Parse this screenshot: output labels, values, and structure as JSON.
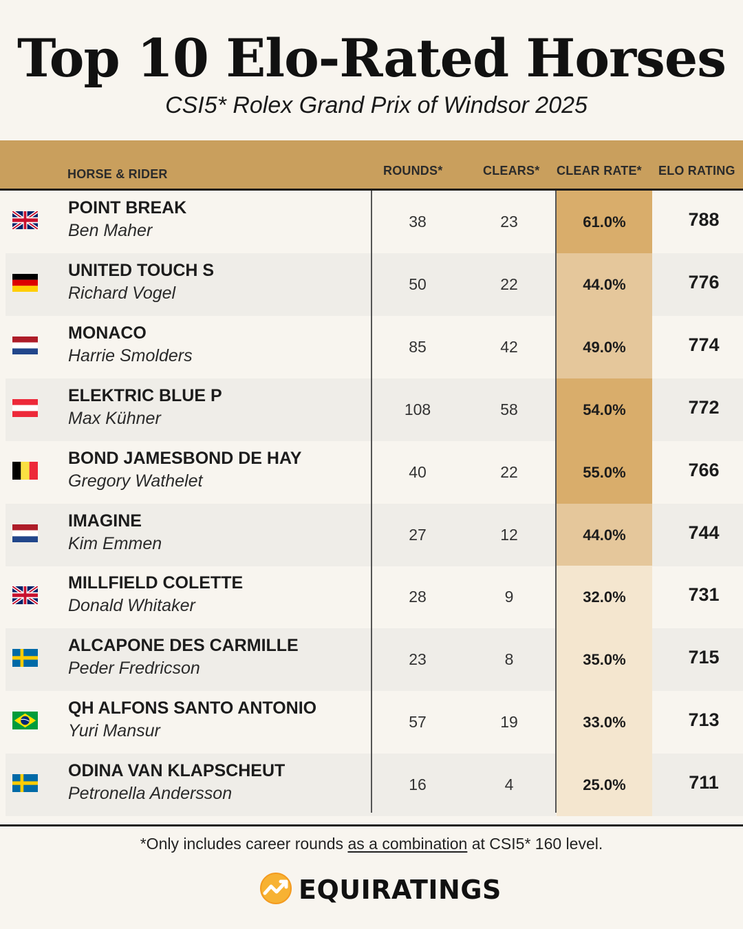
{
  "title": "Top 10 Elo-Rated Horses",
  "subtitle": "CSI5* Rolex Grand Prix of Windsor 2025",
  "header": {
    "horse_rider": "HORSE & RIDER",
    "rounds": "ROUNDS*",
    "clears": "CLEARS*",
    "clear_rate": "CLEAR RATE*",
    "elo_rating": "ELO RATING"
  },
  "colors": {
    "header_bg": "#c99f5d",
    "rate_high": "#d9ad6b",
    "rate_mid": "#e5c79b",
    "rate_low": "#f4e6cf"
  },
  "chart_data": {
    "type": "table",
    "columns": [
      "HORSE & RIDER",
      "ROUNDS*",
      "CLEARS*",
      "CLEAR RATE*",
      "ELO RATING"
    ],
    "rows": [
      {
        "flag": "great-britain",
        "horse": "POINT BREAK",
        "rider": "Ben Maher",
        "rounds": "38",
        "clears": "23",
        "clear_rate": "61.0%",
        "clear_rate_value": 61.0,
        "elo": "788"
      },
      {
        "flag": "germany",
        "horse": "UNITED TOUCH S",
        "rider": "Richard Vogel",
        "rounds": "50",
        "clears": "22",
        "clear_rate": "44.0%",
        "clear_rate_value": 44.0,
        "elo": "776"
      },
      {
        "flag": "netherlands",
        "horse": "MONACO",
        "rider": "Harrie Smolders",
        "rounds": "85",
        "clears": "42",
        "clear_rate": "49.0%",
        "clear_rate_value": 49.0,
        "elo": "774"
      },
      {
        "flag": "austria",
        "horse": "ELEKTRIC BLUE P",
        "rider": "Max Kühner",
        "rounds": "108",
        "clears": "58",
        "clear_rate": "54.0%",
        "clear_rate_value": 54.0,
        "elo": "772"
      },
      {
        "flag": "belgium",
        "horse": "BOND JAMESBOND DE HAY",
        "rider": "Gregory Wathelet",
        "rounds": "40",
        "clears": "22",
        "clear_rate": "55.0%",
        "clear_rate_value": 55.0,
        "elo": "766"
      },
      {
        "flag": "netherlands",
        "horse": "IMAGINE",
        "rider": "Kim Emmen",
        "rounds": "27",
        "clears": "12",
        "clear_rate": "44.0%",
        "clear_rate_value": 44.0,
        "elo": "744"
      },
      {
        "flag": "great-britain",
        "horse": "MILLFIELD COLETTE",
        "rider": "Donald Whitaker",
        "rounds": "28",
        "clears": "9",
        "clear_rate": "32.0%",
        "clear_rate_value": 32.0,
        "elo": "731"
      },
      {
        "flag": "sweden",
        "horse": "ALCAPONE DES CARMILLE",
        "rider": "Peder Fredricson",
        "rounds": "23",
        "clears": "8",
        "clear_rate": "35.0%",
        "clear_rate_value": 35.0,
        "elo": "715"
      },
      {
        "flag": "brazil",
        "horse": "QH ALFONS SANTO ANTONIO",
        "rider": "Yuri Mansur",
        "rounds": "57",
        "clears": "19",
        "clear_rate": "33.0%",
        "clear_rate_value": 33.0,
        "elo": "713"
      },
      {
        "flag": "sweden",
        "horse": "ODINA VAN KLAPSCHEUT",
        "rider": "Petronella Andersson",
        "rounds": "16",
        "clears": "4",
        "clear_rate": "25.0%",
        "clear_rate_value": 25.0,
        "elo": "711"
      }
    ]
  },
  "footnote": {
    "prefix": "*Only includes career rounds ",
    "underlined": "as a combination",
    "suffix": " at CSI5* 160 level."
  },
  "brand": {
    "name": "EQUIRATINGS",
    "icon": "equiratings-logo-icon"
  }
}
